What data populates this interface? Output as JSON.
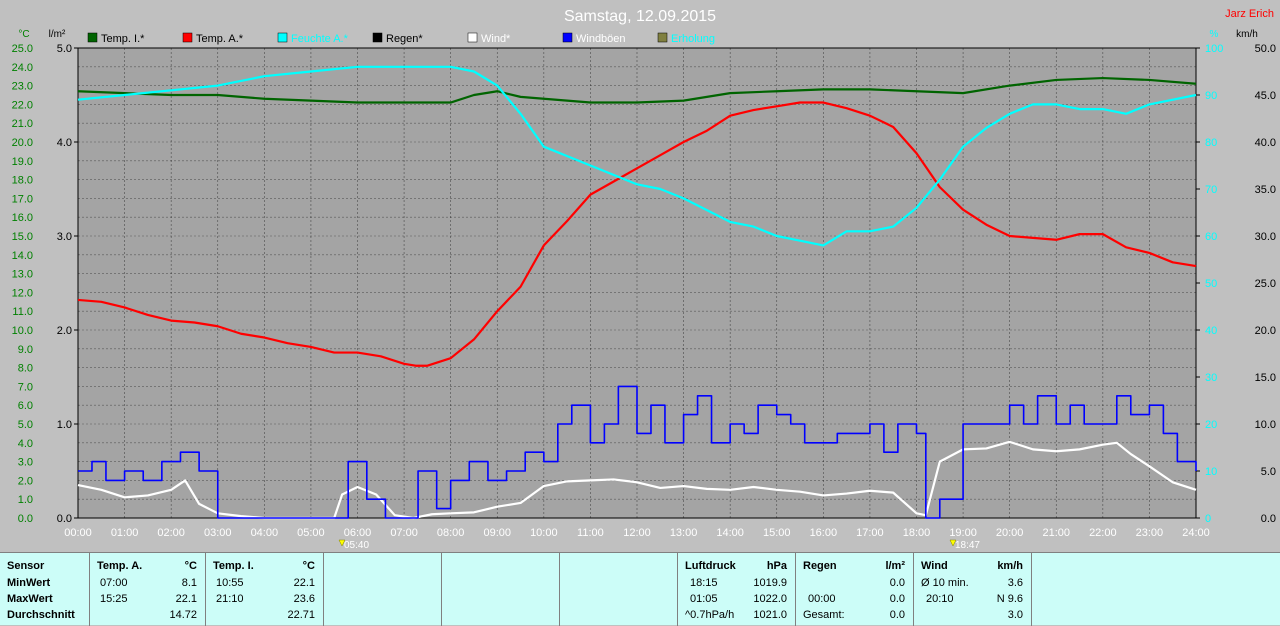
{
  "title": "Samstag, 12.09.2015",
  "author": "Jarz Erich",
  "units": {
    "left_temp": "°C",
    "left_rain": "l/m²",
    "right_hum": "%",
    "right_wind": "km/h"
  },
  "legend": [
    {
      "label": "Temp. I.*",
      "color": "#006400",
      "text_color": "#000000"
    },
    {
      "label": "Temp. A.*",
      "color": "#ff0000",
      "text_color": "#000000"
    },
    {
      "label": "Feuchte A.*",
      "color": "#00ffff",
      "text_color": "#00ffff"
    },
    {
      "label": "Regen*",
      "color": "#000000",
      "text_color": "#000000"
    },
    {
      "label": "Wind*",
      "color": "#ffffff",
      "text_color": "#ffffff"
    },
    {
      "label": "Windböen",
      "color": "#0000ff",
      "text_color": "#ffffff"
    },
    {
      "label": "Erholung",
      "color": "#808040",
      "text_color": "#00ffff"
    }
  ],
  "sun_markers": [
    {
      "label": "05:40",
      "hour": 5.667
    },
    {
      "label": "18:47",
      "hour": 18.783
    }
  ],
  "chart_data": {
    "type": "line",
    "x_unit": "hour",
    "xlim": [
      0,
      24
    ],
    "x_ticks": [
      "00:00",
      "01:00",
      "02:00",
      "03:00",
      "04:00",
      "05:00",
      "06:00",
      "07:00",
      "08:00",
      "09:00",
      "10:00",
      "11:00",
      "12:00",
      "13:00",
      "14:00",
      "15:00",
      "16:00",
      "17:00",
      "18:00",
      "19:00",
      "20:00",
      "21:00",
      "22:00",
      "23:00",
      "24:00"
    ],
    "axes": {
      "temp": {
        "lim": [
          0,
          25
        ],
        "color": "#008000",
        "ticks": [
          "0.0",
          "1.0",
          "2.0",
          "3.0",
          "4.0",
          "5.0",
          "6.0",
          "7.0",
          "8.0",
          "9.0",
          "10.0",
          "11.0",
          "12.0",
          "13.0",
          "14.0",
          "15.0",
          "16.0",
          "17.0",
          "18.0",
          "19.0",
          "20.0",
          "21.0",
          "22.0",
          "23.0",
          "24.0",
          "25.0"
        ]
      },
      "rain": {
        "lim": [
          0,
          5
        ],
        "color": "#000000",
        "ticks": [
          "0.0",
          "1.0",
          "2.0",
          "3.0",
          "4.0",
          "5.0"
        ]
      },
      "hum": {
        "lim": [
          0,
          100
        ],
        "color": "#00ffff",
        "ticks": [
          "0",
          "10",
          "20",
          "30",
          "40",
          "50",
          "60",
          "70",
          "80",
          "90",
          "100"
        ]
      },
      "wind": {
        "lim": [
          0,
          50
        ],
        "color": "#000000",
        "ticks": [
          "0.0",
          "5.0",
          "10.0",
          "15.0",
          "20.0",
          "25.0",
          "30.0",
          "35.0",
          "40.0",
          "45.0",
          "50.0"
        ]
      }
    },
    "grid": true,
    "series": [
      {
        "name": "Temp. I.*",
        "axis": "temp",
        "color": "#006400",
        "x": [
          0,
          1,
          2,
          3,
          4,
          5,
          6,
          7,
          8,
          8.5,
          9,
          9.5,
          10,
          11,
          12,
          13,
          14,
          15,
          16,
          17,
          18,
          19,
          20,
          21,
          22,
          23,
          24
        ],
        "y": [
          22.7,
          22.6,
          22.5,
          22.5,
          22.3,
          22.2,
          22.1,
          22.1,
          22.1,
          22.5,
          22.7,
          22.4,
          22.3,
          22.1,
          22.1,
          22.2,
          22.6,
          22.7,
          22.8,
          22.8,
          22.7,
          22.6,
          23.0,
          23.3,
          23.4,
          23.3,
          23.1
        ]
      },
      {
        "name": "Temp. A.*",
        "axis": "temp",
        "color": "#ff0000",
        "x": [
          0,
          0.5,
          1,
          1.5,
          2,
          2.5,
          3,
          3.5,
          4,
          4.5,
          5,
          5.5,
          6,
          6.5,
          7,
          7.25,
          7.5,
          7.75,
          8,
          8.5,
          9,
          9.5,
          10,
          10.5,
          11,
          11.5,
          12,
          12.5,
          13,
          13.5,
          14,
          14.5,
          15,
          15.5,
          16,
          16.5,
          17,
          17.5,
          18,
          18.5,
          19,
          19.5,
          20,
          20.5,
          21,
          21.5,
          22,
          22.5,
          23,
          23.5,
          24
        ],
        "y": [
          11.6,
          11.5,
          11.2,
          10.8,
          10.5,
          10.4,
          10.2,
          9.8,
          9.6,
          9.3,
          9.1,
          8.8,
          8.8,
          8.6,
          8.2,
          8.1,
          8.1,
          8.3,
          8.5,
          9.5,
          11.0,
          12.3,
          14.5,
          15.8,
          17.2,
          17.9,
          18.6,
          19.3,
          20.0,
          20.6,
          21.4,
          21.7,
          21.9,
          22.1,
          22.1,
          21.8,
          21.4,
          20.8,
          19.4,
          17.6,
          16.4,
          15.6,
          15.0,
          14.9,
          14.8,
          15.1,
          15.1,
          14.4,
          14.1,
          13.6,
          13.4
        ]
      },
      {
        "name": "Feuchte A.*",
        "axis": "hum",
        "color": "#00ffff",
        "x": [
          0,
          1,
          2,
          3,
          4,
          5,
          6,
          7,
          8,
          8.5,
          9,
          9.5,
          10,
          11,
          12,
          12.5,
          13,
          14,
          14.5,
          15,
          15.5,
          16,
          16.5,
          17,
          17.5,
          18,
          18.5,
          19,
          19.5,
          20,
          20.5,
          21,
          21.5,
          22,
          22.5,
          23,
          24
        ],
        "y": [
          89,
          90,
          91,
          92,
          94,
          95,
          96,
          96,
          96,
          95,
          92,
          86,
          79,
          75,
          71,
          70,
          68,
          63,
          62,
          60,
          59,
          58,
          61,
          61,
          62,
          66,
          72,
          79,
          83,
          86,
          88,
          88,
          87,
          87,
          86,
          88,
          90
        ]
      },
      {
        "name": "Wind*",
        "axis": "wind",
        "color": "#ffffff",
        "x": [
          0,
          0.5,
          1,
          1.5,
          2,
          2.3,
          2.6,
          3,
          3.5,
          4,
          4.5,
          5,
          5.5,
          5.67,
          6,
          6.4,
          6.8,
          7.2,
          7.6,
          8,
          8.5,
          9,
          9.5,
          10,
          10.5,
          11,
          11.5,
          12,
          12.5,
          13,
          13.5,
          14,
          14.5,
          15,
          15.5,
          16,
          16.5,
          17,
          17.5,
          18,
          18.2,
          18.5,
          19,
          19.5,
          20,
          20.5,
          21,
          21.5,
          22,
          22.3,
          22.6,
          23,
          23.5,
          24
        ],
        "y": [
          3.5,
          3.0,
          2.2,
          2.4,
          3.0,
          4.0,
          1.5,
          0.5,
          0.2,
          0,
          0,
          0,
          0,
          2.5,
          3.3,
          2.5,
          0.3,
          0,
          0.4,
          0.5,
          0.6,
          1.2,
          1.6,
          3.4,
          3.9,
          4.0,
          4.1,
          3.8,
          3.2,
          3.4,
          3.1,
          3.0,
          3.3,
          3.0,
          2.8,
          2.4,
          2.6,
          2.9,
          2.7,
          0.5,
          0.3,
          6.0,
          7.3,
          7.4,
          8.1,
          7.3,
          7.1,
          7.3,
          7.8,
          8.0,
          6.8,
          5.5,
          3.8,
          3.0
        ]
      },
      {
        "name": "Windböen",
        "axis": "wind",
        "color": "#0000ff",
        "step": true,
        "x": [
          0,
          0.3,
          0.6,
          1,
          1.4,
          1.8,
          2.2,
          2.6,
          3,
          4,
          5.5,
          5.8,
          6.2,
          6.6,
          7,
          7.3,
          7.7,
          8,
          8.4,
          8.8,
          9.2,
          9.6,
          10,
          10.3,
          10.6,
          11,
          11.3,
          11.6,
          12,
          12.3,
          12.6,
          13,
          13.3,
          13.6,
          14,
          14.3,
          14.6,
          15,
          15.3,
          15.6,
          16,
          16.3,
          16.6,
          17,
          17.3,
          17.6,
          18,
          18.2,
          18.5,
          19,
          19.5,
          20,
          20.3,
          20.6,
          21,
          21.3,
          21.6,
          22,
          22.3,
          22.6,
          23,
          23.3,
          23.6,
          24
        ],
        "y": [
          5,
          6,
          4,
          5,
          4,
          6,
          7,
          5,
          0,
          0,
          0,
          6,
          2,
          0,
          0,
          5,
          1,
          4,
          6,
          4,
          5,
          7,
          6,
          10,
          12,
          8,
          10,
          14,
          9,
          12,
          8,
          11,
          13,
          8,
          10,
          9,
          12,
          11,
          10,
          8,
          8,
          9,
          9,
          10,
          7,
          10,
          9,
          0,
          2,
          10,
          10,
          12,
          10,
          13,
          10,
          12,
          10,
          10,
          13,
          11,
          12,
          9,
          6,
          5
        ]
      }
    ]
  },
  "stats": {
    "col_sensor": {
      "head": "Sensor",
      "rows": [
        "MinWert",
        "MaxWert",
        "Durchschnitt"
      ]
    },
    "col_temp_a": {
      "head": "Temp. A.",
      "unit": "°C",
      "min_time": "07:00",
      "min_val": "8.1",
      "max_time": "15:25",
      "max_val": "22.1",
      "avg": "14.72"
    },
    "col_temp_i": {
      "head": "Temp. I.",
      "unit": "°C",
      "min_time": "10:55",
      "min_val": "22.1",
      "max_time": "21:10",
      "max_val": "23.6",
      "avg": "22.71"
    },
    "col_pressure": {
      "head": "Luftdruck",
      "unit": "hPa",
      "min_time": "18:15",
      "min_val": "1019.9",
      "max_time": "01:05",
      "max_val": "1022.0",
      "trend_label": "^0.7hPa/h",
      "trend_val": "1021.0"
    },
    "col_rain": {
      "head": "Regen",
      "unit": "l/m²",
      "r1_label": "",
      "r1_val": "0.0",
      "r2_label": "00:00",
      "r2_val": "0.0",
      "r3_label": "Gesamt:",
      "r3_val": "0.0"
    },
    "col_wind": {
      "head": "Wind",
      "unit": "km/h",
      "r1_label": "Ø 10 min.",
      "r1_val": "3.6",
      "r2_label": "20:10",
      "r2_val": "N 9.6",
      "r3_label": "",
      "r3_val": "3.0"
    }
  }
}
